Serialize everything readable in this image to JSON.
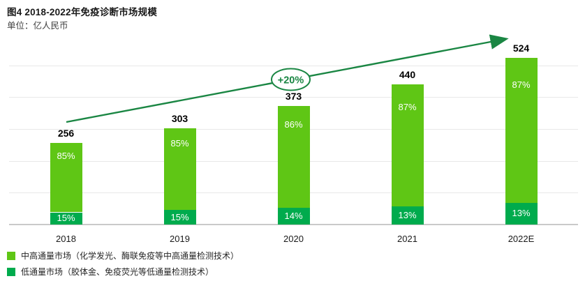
{
  "title": "图4 2018-2022年免疫诊断市场规模",
  "subtitle": "单位：亿人民币",
  "colors": {
    "high_throughput": "#5fc615",
    "low_throughput": "#00ab4d",
    "arrow": "#1a8643",
    "grid": "#e8e8e8",
    "axis": "#c9c9c9"
  },
  "legend": [
    {
      "label": "中高通量市场（化学发光、酶联免疫等中高通量检测技术）",
      "color_key": "high_throughput"
    },
    {
      "label": "低通量市场（胶体金、免疫荧光等低通量检测技术）",
      "color_key": "low_throughput"
    }
  ],
  "chart_data": {
    "type": "bar",
    "stacked": true,
    "categories": [
      "2018",
      "2019",
      "2020",
      "2021",
      "2022E"
    ],
    "totals": [
      256,
      303,
      373,
      440,
      524
    ],
    "series": [
      {
        "name": "中高通量市场",
        "share_pct": [
          85,
          85,
          86,
          87,
          87
        ],
        "segment_labels": [
          "85%",
          "85%",
          "86%",
          "87%",
          "87%"
        ],
        "color_key": "high_throughput"
      },
      {
        "name": "低通量市场",
        "share_pct": [
          15,
          15,
          14,
          13,
          13
        ],
        "segment_labels": [
          "15%",
          "15%",
          "14%",
          "13%",
          "13%"
        ],
        "color_key": "low_throughput"
      }
    ],
    "ylabel": "亿人民币",
    "ylim": [
      0,
      550
    ],
    "gridline_step": 100,
    "grid": true,
    "legend_position": "bottom-left",
    "annotation": {
      "growth_label": "+20%"
    }
  }
}
